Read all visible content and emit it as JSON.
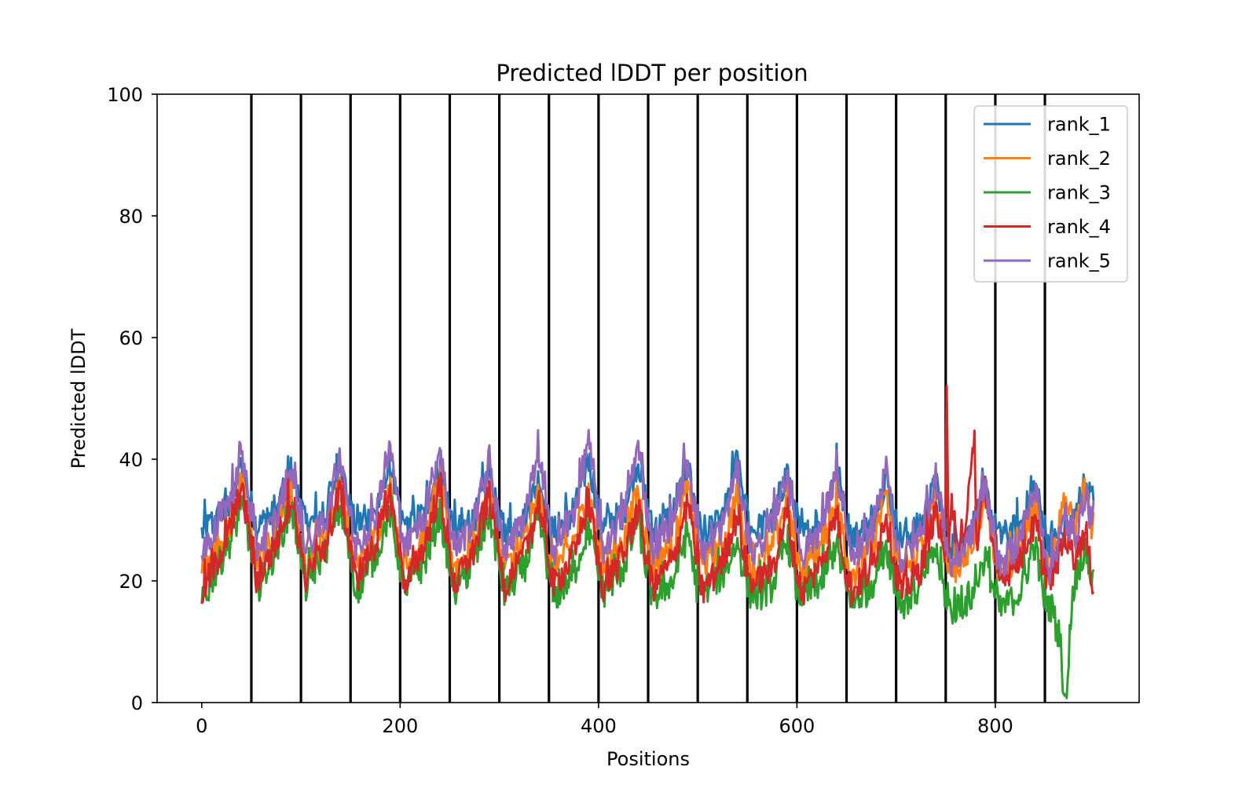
{
  "chart_data": {
    "type": "line",
    "title": "Predicted lDDT per position",
    "xlabel": "Positions",
    "ylabel": "Predicted lDDT",
    "xlim": [
      -45,
      945
    ],
    "ylim": [
      0,
      100
    ],
    "xticks": [
      0,
      200,
      400,
      600,
      800
    ],
    "yticks": [
      0,
      20,
      40,
      60,
      80,
      100
    ],
    "grid": false,
    "legend_position": "top-right",
    "n_positions": 900,
    "chain_boundaries": [
      50,
      100,
      150,
      200,
      250,
      300,
      350,
      400,
      450,
      500,
      550,
      600,
      650,
      700,
      750,
      800,
      850
    ],
    "series": [
      {
        "name": "rank_1",
        "color": "#1f77b4",
        "x": [
          0,
          15,
          30,
          40,
          49,
          55,
          75,
          90,
          99,
          105,
          125,
          140,
          149,
          155,
          175,
          190,
          199,
          205,
          225,
          240,
          249,
          255,
          275,
          290,
          299,
          305,
          325,
          340,
          349,
          355,
          375,
          390,
          399,
          405,
          425,
          440,
          449,
          455,
          475,
          490,
          499,
          505,
          525,
          540,
          549,
          555,
          575,
          590,
          599,
          605,
          625,
          640,
          649,
          655,
          675,
          690,
          699,
          705,
          725,
          740,
          749,
          755,
          775,
          790,
          799,
          805,
          825,
          840,
          849,
          855,
          870,
          880,
          890,
          899
        ],
        "y": [
          28,
          30,
          33,
          39,
          33,
          29,
          31,
          38,
          33,
          29,
          31,
          40,
          32,
          29,
          31,
          39,
          31,
          29,
          31,
          39,
          32,
          28,
          30,
          38,
          30,
          28,
          30,
          37,
          30,
          28,
          31,
          40,
          32,
          29,
          31,
          40,
          32,
          28,
          31,
          39,
          31,
          27,
          30,
          40,
          31,
          28,
          30,
          38,
          31,
          27,
          30,
          39,
          31,
          27,
          29,
          37,
          30,
          27,
          29,
          36,
          29,
          26,
          28,
          35,
          29,
          27,
          29,
          36,
          29,
          26,
          28,
          30,
          36,
          33
        ]
      },
      {
        "name": "rank_2",
        "color": "#ff7f0e",
        "x": [
          0,
          15,
          30,
          40,
          49,
          55,
          75,
          90,
          99,
          105,
          125,
          140,
          149,
          155,
          175,
          190,
          199,
          205,
          225,
          240,
          249,
          255,
          275,
          290,
          299,
          305,
          325,
          340,
          349,
          355,
          375,
          390,
          399,
          405,
          425,
          440,
          449,
          455,
          475,
          490,
          499,
          505,
          525,
          540,
          549,
          555,
          575,
          590,
          599,
          605,
          625,
          640,
          649,
          655,
          675,
          690,
          699,
          705,
          725,
          740,
          749,
          755,
          775,
          790,
          799,
          805,
          825,
          840,
          849,
          855,
          870,
          880,
          890,
          899
        ],
        "y": [
          21,
          25,
          30,
          36,
          28,
          23,
          27,
          35,
          27,
          23,
          27,
          36,
          27,
          22,
          27,
          35,
          26,
          22,
          27,
          36,
          27,
          22,
          26,
          35,
          26,
          22,
          26,
          34,
          25,
          22,
          26,
          35,
          26,
          22,
          26,
          35,
          26,
          22,
          26,
          35,
          26,
          22,
          26,
          34,
          25,
          21,
          25,
          33,
          25,
          21,
          26,
          34,
          25,
          21,
          25,
          34,
          25,
          21,
          25,
          33,
          25,
          21,
          25,
          34,
          25,
          21,
          25,
          33,
          24,
          21,
          34,
          28,
          35,
          27
        ]
      },
      {
        "name": "rank_3",
        "color": "#2ca02c",
        "x": [
          0,
          15,
          30,
          40,
          49,
          55,
          75,
          90,
          99,
          105,
          125,
          140,
          149,
          155,
          175,
          190,
          199,
          205,
          225,
          240,
          249,
          255,
          275,
          290,
          299,
          305,
          325,
          340,
          349,
          355,
          375,
          390,
          399,
          405,
          425,
          440,
          449,
          455,
          475,
          490,
          499,
          505,
          525,
          540,
          549,
          555,
          575,
          590,
          599,
          605,
          625,
          640,
          649,
          655,
          675,
          690,
          699,
          705,
          725,
          740,
          749,
          755,
          775,
          790,
          799,
          805,
          825,
          840,
          849,
          858,
          862,
          866,
          868,
          872,
          876,
          880,
          890,
          899
        ],
        "y": [
          16,
          22,
          27,
          32,
          26,
          18,
          25,
          32,
          25,
          19,
          25,
          32,
          24,
          18,
          24,
          31,
          23,
          18,
          23,
          31,
          23,
          18,
          23,
          31,
          23,
          18,
          22,
          30,
          22,
          17,
          21,
          29,
          21,
          18,
          22,
          30,
          21,
          17,
          20,
          28,
          19,
          18,
          21,
          26,
          20,
          17,
          19,
          27,
          19,
          17,
          20,
          26,
          19,
          16,
          19,
          26,
          19,
          16,
          19,
          25,
          18,
          15,
          17,
          24,
          18,
          15,
          18,
          26,
          17,
          15,
          12,
          11,
          1.5,
          1,
          14,
          20,
          25,
          19
        ]
      },
      {
        "name": "rank_4",
        "color": "#d62728",
        "x": [
          0,
          15,
          30,
          40,
          49,
          55,
          75,
          90,
          99,
          105,
          125,
          140,
          149,
          155,
          175,
          190,
          199,
          205,
          225,
          240,
          249,
          255,
          275,
          290,
          299,
          305,
          325,
          340,
          349,
          355,
          375,
          390,
          399,
          405,
          425,
          440,
          449,
          455,
          475,
          490,
          499,
          505,
          525,
          540,
          549,
          555,
          575,
          590,
          599,
          605,
          625,
          640,
          649,
          655,
          675,
          690,
          699,
          705,
          725,
          740,
          749,
          751,
          753,
          756,
          760,
          770,
          779,
          781,
          790,
          799,
          805,
          825,
          840,
          849,
          855,
          870,
          880,
          890,
          899
        ],
        "y": [
          18,
          23,
          29,
          35,
          27,
          20,
          26,
          34,
          26,
          20,
          26,
          35,
          26,
          20,
          26,
          34,
          25,
          19,
          26,
          35,
          25,
          19,
          25,
          34,
          25,
          19,
          24,
          33,
          24,
          19,
          24,
          33,
          24,
          19,
          24,
          32,
          23,
          19,
          23,
          33,
          23,
          18,
          23,
          31,
          22,
          19,
          22,
          31,
          22,
          18,
          23,
          31,
          22,
          18,
          22,
          31,
          22,
          18,
          22,
          32,
          22,
          54,
          25,
          35,
          24,
          28,
          44,
          26,
          36,
          23,
          20,
          24,
          29,
          22,
          20,
          27,
          24,
          28,
          19
        ]
      },
      {
        "name": "rank_5",
        "color": "#9467bd",
        "x": [
          0,
          15,
          30,
          40,
          49,
          55,
          75,
          90,
          99,
          105,
          125,
          140,
          149,
          155,
          175,
          190,
          199,
          205,
          225,
          240,
          249,
          255,
          275,
          290,
          299,
          305,
          325,
          340,
          349,
          355,
          375,
          390,
          399,
          405,
          425,
          440,
          449,
          455,
          475,
          490,
          499,
          505,
          525,
          540,
          549,
          555,
          575,
          590,
          599,
          605,
          625,
          640,
          649,
          655,
          675,
          690,
          699,
          705,
          725,
          740,
          749,
          755,
          775,
          790,
          799,
          805,
          825,
          840,
          849,
          855,
          870,
          880,
          890,
          899
        ],
        "y": [
          24,
          29,
          34,
          41,
          32,
          25,
          30,
          39,
          31,
          25,
          30,
          41,
          31,
          25,
          31,
          42,
          31,
          25,
          31,
          42,
          31,
          25,
          30,
          40,
          30,
          25,
          30,
          41,
          30,
          25,
          31,
          43,
          31,
          25,
          31,
          42,
          31,
          25,
          30,
          40,
          30,
          24,
          29,
          38,
          29,
          24,
          29,
          38,
          29,
          24,
          29,
          38,
          29,
          23,
          28,
          38,
          28,
          23,
          28,
          37,
          28,
          22,
          27,
          36,
          27,
          22,
          27,
          35,
          26,
          22,
          30,
          27,
          34,
          29
        ]
      }
    ]
  }
}
